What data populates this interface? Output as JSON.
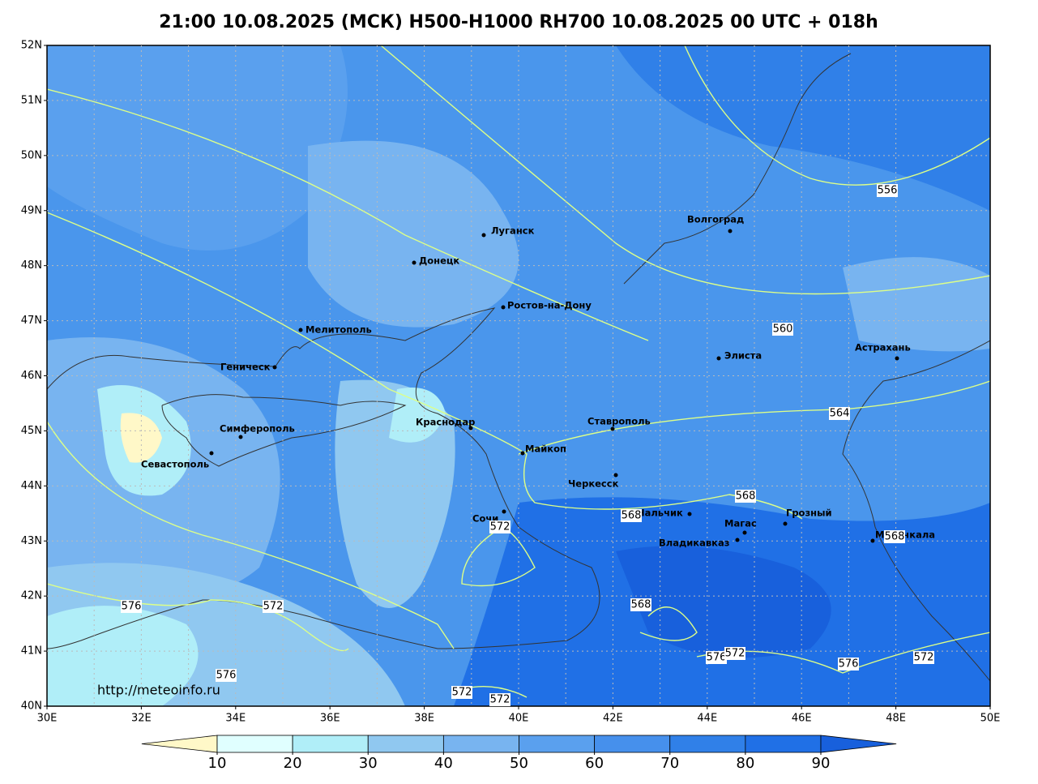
{
  "title": "21:00 10.08.2025 (МСК) H500-H1000 RH700 10.08.2025 00 UTC + 018h",
  "lat_ticks": [
    "40N",
    "41N",
    "42N",
    "43N",
    "44N",
    "45N",
    "46N",
    "47N",
    "48N",
    "49N",
    "50N",
    "51N",
    "52N"
  ],
  "lon_ticks": [
    "30E",
    "32E",
    "34E",
    "36E",
    "38E",
    "40E",
    "42E",
    "44E",
    "46E",
    "48E",
    "50E"
  ],
  "cities": [
    "Луганск",
    "Донецк",
    "Волгоград",
    "Ростов-на-Дону",
    "Мелитополь",
    "Элиста",
    "Астрахань",
    "Геническ",
    "Симферополь",
    "Краснодар",
    "Ставрополь",
    "Майкоп",
    "Севастополь",
    "Черкесск",
    "Сочи",
    "Нальчик",
    "Магас",
    "Грозный",
    "Владикавказ",
    "Махачкала"
  ],
  "contour_labels": [
    556,
    560,
    564,
    568,
    568,
    568,
    572,
    576,
    572,
    568,
    576,
    572,
    576,
    572,
    576,
    572,
    572
  ],
  "credit": "http://meteoinfo.ru",
  "colorbar": {
    "ticks": [
      10,
      20,
      30,
      40,
      50,
      60,
      70,
      80,
      90
    ],
    "colors": [
      "#fff8c8",
      "#e0ffff",
      "#b0eef8",
      "#90c8f0",
      "#78b4f0",
      "#5aa0ee",
      "#4690ec",
      "#3080e8",
      "#2070e6",
      "#1860dc"
    ]
  }
}
